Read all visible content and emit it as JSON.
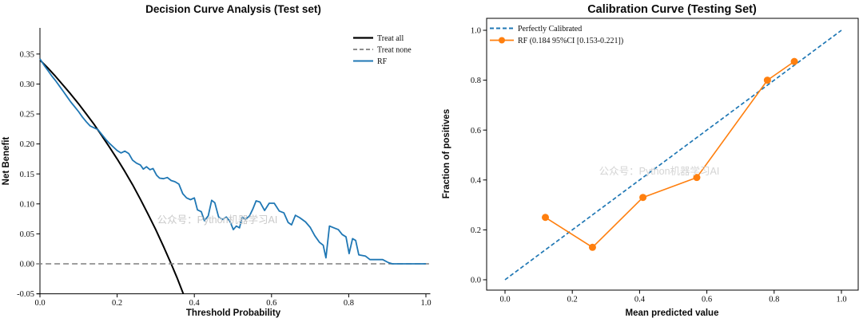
{
  "watermark": "公众号：Python机器学习AI",
  "colors": {
    "rf_blue": "#1f77b4",
    "orange": "#ff7f0e",
    "treat_all_black": "#000000",
    "treat_none_gray": "#7f7f7f",
    "watermark_gray": "#c9c9c9",
    "axis": "#000000",
    "background": "#ffffff"
  },
  "chart_data": [
    {
      "type": "line",
      "title": "Decision Curve Analysis (Test set)",
      "xlabel": "Threshold Probability",
      "ylabel": "Net Benefit",
      "xlim": [
        -0.01,
        1.01
      ],
      "ylim": [
        -0.05,
        0.394
      ],
      "grid": false,
      "frame": "left-bottom-spines",
      "legend_position": "upper right",
      "xticks": [
        {
          "v": 0.0,
          "label": "0.0"
        },
        {
          "v": 0.2,
          "label": "0.2"
        },
        {
          "v": 0.4,
          "label": "0.4"
        },
        {
          "v": 0.6,
          "label": "0.6"
        },
        {
          "v": 0.8,
          "label": "0.8"
        },
        {
          "v": 1.0,
          "label": "1.0"
        }
      ],
      "yticks": [
        {
          "v": -0.05,
          "label": "-0.05"
        },
        {
          "v": 0.0,
          "label": "0.00"
        },
        {
          "v": 0.05,
          "label": "0.05"
        },
        {
          "v": 0.1,
          "label": "0.10"
        },
        {
          "v": 0.15,
          "label": "0.15"
        },
        {
          "v": 0.2,
          "label": "0.20"
        },
        {
          "v": 0.25,
          "label": "0.25"
        },
        {
          "v": 0.3,
          "label": "0.30"
        },
        {
          "v": 0.35,
          "label": "0.35"
        }
      ],
      "series": [
        {
          "name": "Treat all",
          "color": "#000000",
          "width": 2,
          "dash": null,
          "marker": false,
          "points": [
            [
              0.0,
              0.34
            ],
            [
              0.02,
              0.327
            ],
            [
              0.04,
              0.313
            ],
            [
              0.06,
              0.298
            ],
            [
              0.08,
              0.283
            ],
            [
              0.1,
              0.267
            ],
            [
              0.12,
              0.25
            ],
            [
              0.14,
              0.233
            ],
            [
              0.16,
              0.214
            ],
            [
              0.18,
              0.195
            ],
            [
              0.2,
              0.175
            ],
            [
              0.22,
              0.154
            ],
            [
              0.24,
              0.132
            ],
            [
              0.26,
              0.108
            ],
            [
              0.28,
              0.083
            ],
            [
              0.3,
              0.057
            ],
            [
              0.32,
              0.029
            ],
            [
              0.34,
              0.0
            ],
            [
              0.355,
              -0.023
            ],
            [
              0.3715,
              -0.05
            ]
          ]
        },
        {
          "name": "Treat none",
          "color": "#7f7f7f",
          "width": 1.6,
          "dash": "7 4",
          "marker": false,
          "points": [
            [
              -0.008,
              0.0
            ],
            [
              1.008,
              0.0
            ]
          ]
        },
        {
          "name": "RF",
          "color": "#1f77b4",
          "width": 1.8,
          "dash": null,
          "marker": false,
          "points": [
            [
              0.0,
              0.342
            ],
            [
              0.01,
              0.332
            ],
            [
              0.02,
              0.323
            ],
            [
              0.03,
              0.314
            ],
            [
              0.04,
              0.306
            ],
            [
              0.05,
              0.297
            ],
            [
              0.06,
              0.288
            ],
            [
              0.07,
              0.279
            ],
            [
              0.08,
              0.27
            ],
            [
              0.09,
              0.262
            ],
            [
              0.1,
              0.254
            ],
            [
              0.11,
              0.245
            ],
            [
              0.12,
              0.237
            ],
            [
              0.13,
              0.23
            ],
            [
              0.14,
              0.227
            ],
            [
              0.15,
              0.224
            ],
            [
              0.16,
              0.216
            ],
            [
              0.17,
              0.208
            ],
            [
              0.18,
              0.201
            ],
            [
              0.19,
              0.195
            ],
            [
              0.2,
              0.189
            ],
            [
              0.21,
              0.185
            ],
            [
              0.22,
              0.188
            ],
            [
              0.23,
              0.184
            ],
            [
              0.24,
              0.173
            ],
            [
              0.25,
              0.168
            ],
            [
              0.26,
              0.165
            ],
            [
              0.268,
              0.158
            ],
            [
              0.276,
              0.162
            ],
            [
              0.285,
              0.157
            ],
            [
              0.293,
              0.159
            ],
            [
              0.302,
              0.148
            ],
            [
              0.31,
              0.143
            ],
            [
              0.32,
              0.142
            ],
            [
              0.33,
              0.144
            ],
            [
              0.34,
              0.139
            ],
            [
              0.35,
              0.137
            ],
            [
              0.36,
              0.133
            ],
            [
              0.37,
              0.117
            ],
            [
              0.38,
              0.11
            ],
            [
              0.39,
              0.107
            ],
            [
              0.4,
              0.11
            ],
            [
              0.408,
              0.09
            ],
            [
              0.418,
              0.087
            ],
            [
              0.426,
              0.072
            ],
            [
              0.436,
              0.08
            ],
            [
              0.445,
              0.106
            ],
            [
              0.453,
              0.102
            ],
            [
              0.463,
              0.078
            ],
            [
              0.473,
              0.074
            ],
            [
              0.483,
              0.078
            ],
            [
              0.493,
              0.07
            ],
            [
              0.501,
              0.057
            ],
            [
              0.509,
              0.063
            ],
            [
              0.517,
              0.06
            ],
            [
              0.524,
              0.078
            ],
            [
              0.532,
              0.074
            ],
            [
              0.543,
              0.08
            ],
            [
              0.552,
              0.092
            ],
            [
              0.56,
              0.105
            ],
            [
              0.57,
              0.103
            ],
            [
              0.582,
              0.089
            ],
            [
              0.594,
              0.101
            ],
            [
              0.607,
              0.101
            ],
            [
              0.62,
              0.088
            ],
            [
              0.632,
              0.085
            ],
            [
              0.643,
              0.069
            ],
            [
              0.652,
              0.065
            ],
            [
              0.662,
              0.081
            ],
            [
              0.673,
              0.077
            ],
            [
              0.688,
              0.07
            ],
            [
              0.7,
              0.061
            ],
            [
              0.712,
              0.047
            ],
            [
              0.724,
              0.036
            ],
            [
              0.734,
              0.031
            ],
            [
              0.741,
              0.01
            ],
            [
              0.75,
              0.063
            ],
            [
              0.762,
              0.06
            ],
            [
              0.773,
              0.057
            ],
            [
              0.783,
              0.049
            ],
            [
              0.793,
              0.045
            ],
            [
              0.801,
              0.017
            ],
            [
              0.81,
              0.042
            ],
            [
              0.818,
              0.039
            ],
            [
              0.826,
              0.015
            ],
            [
              0.843,
              0.013
            ],
            [
              0.855,
              0.007
            ],
            [
              0.888,
              0.007
            ],
            [
              0.903,
              0.002
            ],
            [
              0.913,
              0.0
            ],
            [
              1.0,
              0.0
            ]
          ]
        }
      ]
    },
    {
      "type": "line",
      "title": "Calibration Curve (Testing Set)",
      "xlabel": "Mean predicted value",
      "ylabel": "Fraction of positives",
      "xlim": [
        -0.055,
        1.05
      ],
      "ylim": [
        -0.042,
        1.048
      ],
      "grid": false,
      "frame": "box",
      "legend_position": "upper left",
      "xticks": [
        {
          "v": 0.0,
          "label": "0.0"
        },
        {
          "v": 0.2,
          "label": "0.2"
        },
        {
          "v": 0.4,
          "label": "0.4"
        },
        {
          "v": 0.6,
          "label": "0.6"
        },
        {
          "v": 0.8,
          "label": "0.8"
        },
        {
          "v": 1.0,
          "label": "1.0"
        }
      ],
      "yticks": [
        {
          "v": 0.0,
          "label": "0.0"
        },
        {
          "v": 0.2,
          "label": "0.2"
        },
        {
          "v": 0.4,
          "label": "0.4"
        },
        {
          "v": 0.6,
          "label": "0.6"
        },
        {
          "v": 0.8,
          "label": "0.8"
        },
        {
          "v": 1.0,
          "label": "1.0"
        }
      ],
      "series": [
        {
          "name": "Perfectly Calibrated",
          "color": "#1f77b4",
          "width": 1.7,
          "dash": "5 3",
          "marker": false,
          "points": [
            [
              0.0,
              0.0
            ],
            [
              1.0,
              1.0
            ]
          ]
        },
        {
          "name": "RF (0.184 95%CI [0.153-0.221])",
          "color": "#ff7f0e",
          "width": 1.6,
          "dash": null,
          "marker": true,
          "points": [
            [
              0.12,
              0.25
            ],
            [
              0.26,
              0.13
            ],
            [
              0.41,
              0.33
            ],
            [
              0.57,
              0.41
            ],
            [
              0.78,
              0.8
            ],
            [
              0.86,
              0.875
            ]
          ]
        }
      ]
    }
  ]
}
